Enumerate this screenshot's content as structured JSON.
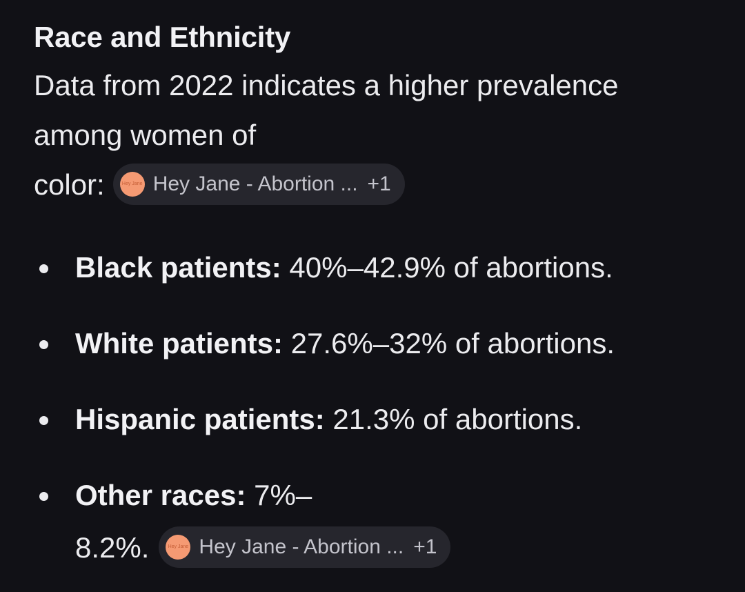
{
  "section": {
    "heading": "Race and Ethnicity",
    "intro_line1": "Data from 2022 indicates a higher prevalence",
    "intro_line2": "among women of",
    "intro_line3": "color:"
  },
  "citation_chip": {
    "logo_text": "Hey Jane",
    "label": "Hey Jane - Abortion ...",
    "count": "+1"
  },
  "bullets": [
    {
      "label": "Black patients:",
      "text": " 40%–42.9% of abortions."
    },
    {
      "label": "White patients:",
      "text": " 27.6%–32% of abortions."
    },
    {
      "label": "Hispanic patients:",
      "text": " 21.3% of abortions."
    },
    {
      "label": "Other races:",
      "text": " 7%–",
      "text_cont": "8.2%."
    }
  ],
  "colors": {
    "background": "#111116",
    "text": "#ECECEF",
    "chip_bg": "#26262D",
    "chip_logo": "#F59A73"
  }
}
